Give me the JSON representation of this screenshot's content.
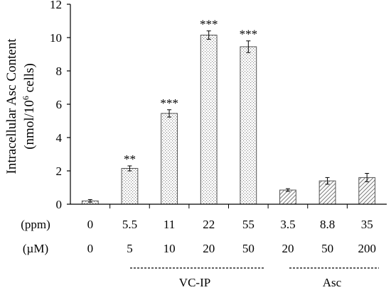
{
  "chart_data": {
    "type": "bar",
    "ylabel_line1": "Intracellular Asc Content",
    "ylabel_line2_prefix": "(nmol/10",
    "ylabel_line2_sup": "6",
    "ylabel_line2_suffix": " cells)",
    "ylim": [
      0,
      12
    ],
    "yticks": [
      "0",
      "2",
      "4",
      "6",
      "8",
      "10",
      "12"
    ],
    "grid": false,
    "row_labels": [
      "(ppm)",
      "(µM)"
    ],
    "categories_ppm": [
      "0",
      "5.5",
      "11",
      "22",
      "55",
      "3.5",
      "8.8",
      "35"
    ],
    "categories_uM": [
      "0",
      "5",
      "10",
      "20",
      "50",
      "20",
      "50",
      "200"
    ],
    "values": [
      0.2,
      2.15,
      5.45,
      10.15,
      9.45,
      0.85,
      1.4,
      1.6
    ],
    "errors": [
      0.08,
      0.15,
      0.22,
      0.25,
      0.35,
      0.08,
      0.2,
      0.25
    ],
    "significance": [
      "",
      "**",
      "***",
      "***",
      "***",
      "",
      "",
      ""
    ],
    "fill_pattern": [
      "dots",
      "dots",
      "dots",
      "dots",
      "dots",
      "hatch",
      "hatch",
      "hatch"
    ],
    "groups": [
      {
        "label": "VC-IP",
        "start": 1,
        "end": 4
      },
      {
        "label": "Asc",
        "start": 5,
        "end": 7
      }
    ],
    "colors": {
      "axis": "#000000",
      "bar_outline": "#555555",
      "dot": "#8a8a8a",
      "hatch": "#7a7a7a"
    }
  }
}
